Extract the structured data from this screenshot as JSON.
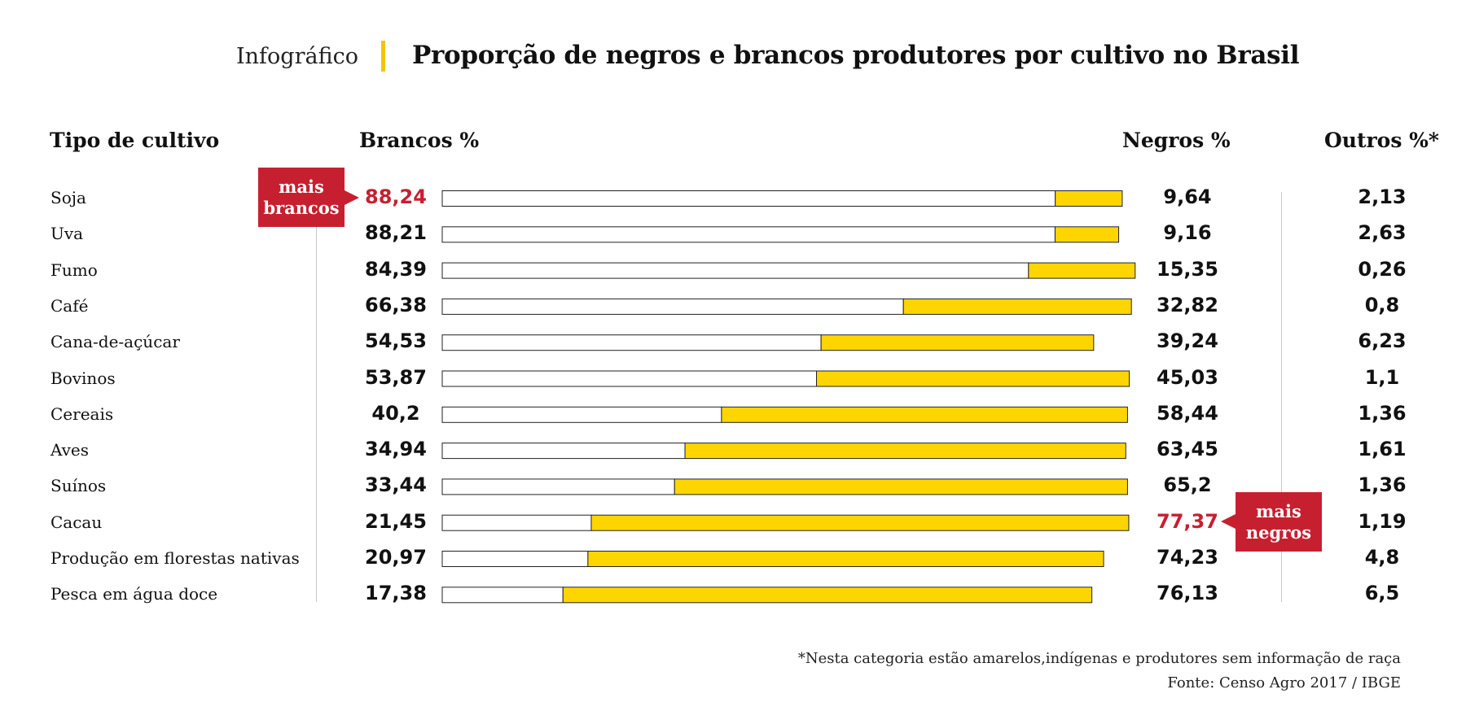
{
  "header": {
    "kicker": "Infográfico",
    "title": "Proporção de negros e brancos produtores por cultivo no Brasil"
  },
  "columns": {
    "crop": "Tipo de cultivo",
    "white": "Brancos %",
    "black": "Negros %",
    "other": "Outros %*"
  },
  "callouts": {
    "most_white": [
      "mais",
      "brancos"
    ],
    "most_black": [
      "mais",
      "negros"
    ]
  },
  "footnotes": {
    "note": "*Nesta categoria estão amarelos,indígenas e produtores sem informação de raça",
    "source": "Fonte: Censo Agro 2017 / IBGE"
  },
  "colors": {
    "white_bar": "#FFFFFF",
    "black_bar": "#FFD500",
    "highlight": "#C62030",
    "header_accent": "#F5C400"
  },
  "chart_data": {
    "type": "bar",
    "orientation": "horizontal-stacked",
    "categories": [
      "Soja",
      "Uva",
      "Fumo",
      "Café",
      "Cana-de-açúcar",
      "Bovinos",
      "Cereais",
      "Aves",
      "Suínos",
      "Cacau",
      "Produção em florestas nativas",
      "Pesca em água doce"
    ],
    "series": [
      {
        "name": "Brancos %",
        "values": [
          88.24,
          88.21,
          84.39,
          66.38,
          54.53,
          53.87,
          40.2,
          34.94,
          33.44,
          21.45,
          20.97,
          17.38
        ],
        "labels": [
          "88,24",
          "88,21",
          "84,39",
          "66,38",
          "54,53",
          "53,87",
          "40,2",
          "34,94",
          "33,44",
          "21,45",
          "20,97",
          "17,38"
        ]
      },
      {
        "name": "Negros %",
        "values": [
          9.64,
          9.16,
          15.35,
          32.82,
          39.24,
          45.03,
          58.44,
          63.45,
          65.2,
          77.37,
          74.23,
          76.13
        ],
        "labels": [
          "9,64",
          "9,16",
          "15,35",
          "32,82",
          "39,24",
          "45,03",
          "58,44",
          "63,45",
          "65,2",
          "77,37",
          "74,23",
          "76,13"
        ]
      },
      {
        "name": "Outros %*",
        "values": [
          2.13,
          2.63,
          0.26,
          0.8,
          6.23,
          1.1,
          1.36,
          1.61,
          1.36,
          1.19,
          4.8,
          6.5
        ],
        "labels": [
          "2,13",
          "2,63",
          "0,26",
          "0,8",
          "6,23",
          "1,1",
          "1,36",
          "1,61",
          "1,36",
          "1,19",
          "4,8",
          "6,5"
        ]
      }
    ],
    "highlight": {
      "most_white": "Soja",
      "most_black": "Cacau"
    },
    "xlim": [
      0,
      100
    ]
  }
}
